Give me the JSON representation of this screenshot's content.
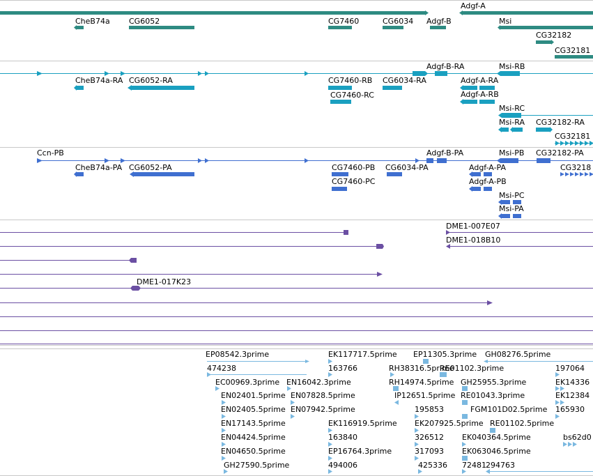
{
  "colors": {
    "gene": "#2e8b82",
    "mrna": "#1aa0c0",
    "protein": "#3f6fd0",
    "clone": "#6b4fa3",
    "est": "#7ab8e0",
    "separator": "#c8c8c8"
  },
  "tracks": [
    {
      "name": "genes",
      "color_key": "gene",
      "labels": [
        "Adgf-A",
        "CheB74a",
        "CG6052",
        "CG7460",
        "CG6034",
        "Adgf-B",
        "Msi",
        "CG32182",
        "CG32181"
      ]
    },
    {
      "name": "transcripts",
      "color_key": "mrna",
      "labels": [
        "Adgf-B-RA",
        "Msi-RB",
        "CheB74a-RA",
        "CG6052-RA",
        "CG7460-RB",
        "CG6034-RA",
        "Adgf-A-RA",
        "CG7460-RC",
        "Adgf-A-RB",
        "Msi-RC",
        "Msi-RA",
        "CG32182-RA",
        "CG32181"
      ]
    },
    {
      "name": "proteins",
      "color_key": "protein",
      "labels": [
        "Ccn-PB",
        "Adgf-B-PA",
        "Msi-PB",
        "CG32182-PA",
        "CheB74a-PA",
        "CG6052-PA",
        "CG7460-PB",
        "CG6034-PA",
        "Adgf-A-PA",
        "CG3218",
        "Adgf-A-PB",
        "CG7460-PC",
        "Msi-PC",
        "Msi-PA"
      ]
    },
    {
      "name": "clones",
      "color_key": "clone",
      "labels": [
        "DME1-007E07",
        "DME1-018B10",
        "DME1-017K23"
      ]
    },
    {
      "name": "ests",
      "color_key": "est",
      "labels": [
        "EP08542.3prime",
        "EK117717.5prime",
        "EP11305.3prime",
        "GH08276.5prime",
        "474238",
        "163766",
        "RH38316.5prime",
        "RE01102.3prime",
        "197064",
        "EC00969.3prime",
        "EN16042.3prime",
        "RH14974.5prime",
        "GH25955.3prime",
        "EK14336",
        "EN02401.5prime",
        "EN07828.5prime",
        "IP12651.5prime",
        "RE01043.3prime",
        "EK12384",
        "EN02405.5prime",
        "EN07942.5prime",
        "195853",
        "FGM101D02.5prime",
        "165930",
        "EN17143.5prime",
        "EK116919.5prime",
        "EK207925.5prime",
        "RE01102.5prime",
        "EN04424.5prime",
        "163840",
        "326512",
        "EK040364.5prime",
        "bs62d0",
        "EN04650.5prime",
        "EP16764.3prime",
        "317093",
        "EK063046.5prime",
        "GH27590.5prime",
        "494006",
        "425336",
        "72481",
        "294763"
      ]
    }
  ]
}
